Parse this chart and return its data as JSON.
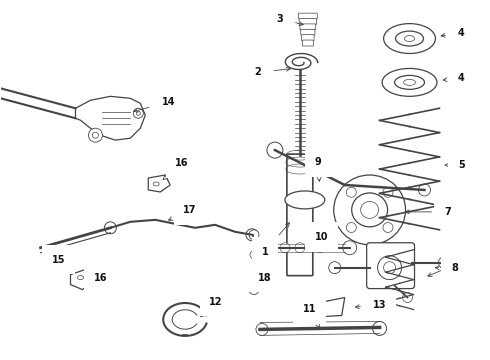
{
  "bg_color": "#ffffff",
  "line_color": "#444444",
  "fig_width": 4.9,
  "fig_height": 3.6,
  "dpi": 100,
  "label_fontsize": 7.0,
  "label_color": "#111111",
  "arrow_lw": 0.6,
  "parts_lw": 0.9
}
